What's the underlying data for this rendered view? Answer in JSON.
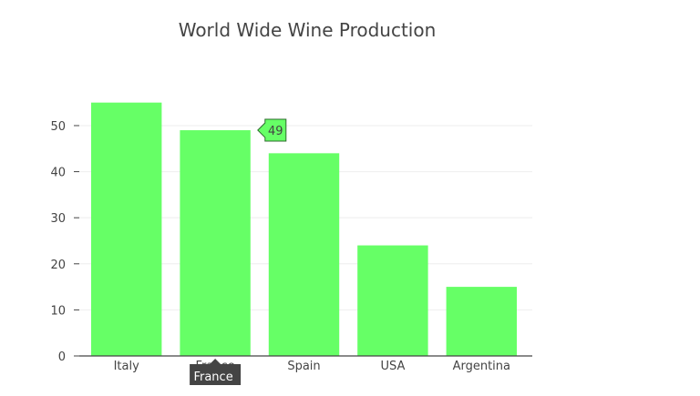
{
  "chart_data": {
    "type": "bar",
    "title": "World Wide Wine Production",
    "xlabel": "",
    "ylabel": "",
    "categories": [
      "Italy",
      "France",
      "Spain",
      "USA",
      "Argentina"
    ],
    "values": [
      55,
      49,
      44,
      24,
      15
    ],
    "ylim": [
      0,
      57.9
    ],
    "yticks": [
      0,
      10,
      20,
      30,
      40,
      50
    ],
    "grid": true,
    "bar_color": "#66ff66",
    "hover": {
      "category": "France",
      "value": 49
    }
  },
  "colors": {
    "hover_value_border": "#2d6b2d",
    "hover_category_bg": "#444444",
    "grid": "#eeeeee",
    "axis": "#444444"
  }
}
